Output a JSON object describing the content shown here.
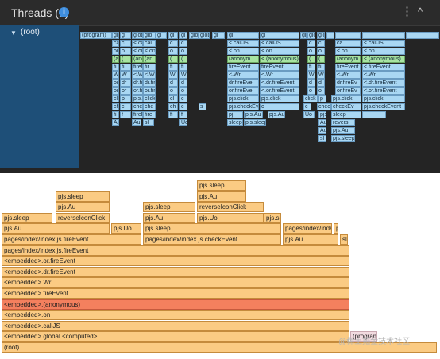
{
  "header": {
    "title": "Threads (1)",
    "info_icon": "info-icon",
    "more_icon": "more-vertical-icon",
    "collapse_icon": "chevron-up-icon"
  },
  "tree": {
    "root_label": "(root)"
  },
  "minimap": {
    "rows": [
      [
        "(program)",
        "gl",
        "gl",
        "global.<c",
        "glo",
        "gl",
        "gl",
        "gl",
        "global.<c",
        "global.<comp",
        "gl",
        "gl",
        "gl",
        "gl",
        "global.<comp",
        "global.<comp"
      ],
      [
        "ca",
        "c",
        "<.callJS",
        "cal",
        "c",
        "c",
        "<.callJS",
        "<.callJS",
        "c",
        "c",
        "ca",
        "<.callJS"
      ],
      [
        "on",
        "o",
        "<.on",
        "<.on",
        "o",
        "o",
        "<.on",
        "<.on",
        "o",
        "o",
        "<.on",
        "<.on"
      ],
      [
        "(a",
        "(",
        "(anonymous",
        "(an",
        "(",
        "(",
        "(anonym",
        "<.(anonymous)",
        "(",
        "(",
        "(anonym",
        "<.(anonymous)"
      ],
      [
        "fi",
        "fi",
        "fireEvent",
        "fir",
        "fi",
        "fi",
        "fireEvent",
        "fireEvent",
        "fi",
        "fi",
        "fireEvent",
        "<.fireEvent"
      ],
      [
        "Wr",
        "W",
        "<.Wr",
        "<.Wr",
        "W",
        "W",
        "<.Wr",
        "<.Wr",
        "W",
        "W",
        "<.Wr",
        "<.Wr"
      ],
      [
        "or",
        "dr",
        "dr.fireEv",
        "dr.fire",
        "d",
        "d",
        "dr.fireEve",
        "<.dr.fireEvent",
        "d",
        "d",
        "dr.fireEv",
        "<.dr.fireEvent"
      ],
      [
        "or",
        "or",
        "or.fireEv",
        "or.fire",
        "o",
        "o",
        "or.fireEve",
        "<.or.fireEvent",
        "o",
        "o",
        "or.fireEv",
        "<.or.fireEvent"
      ],
      [
        "cli",
        "p",
        "pjs.click",
        "click",
        "cl",
        "c",
        "pjs.click",
        "pjs.click",
        "click",
        "p",
        "pjs.click",
        "pjs.click"
      ],
      [
        "ch",
        "c",
        "checkEve",
        "che",
        "ch",
        "c",
        "s",
        "pjs.checkEv",
        "c",
        "c",
        "checkEv",
        "checkEv",
        "pjs.checkEvent"
      ],
      [
        "fi",
        "f",
        "fireEvent",
        "fire",
        "fi",
        "f",
        "pj",
        "pjs.Au",
        "pjs.Au",
        "Uo",
        "pjs.Uo",
        "sleep"
      ],
      [
        "Au",
        "Au",
        "sl",
        "Uo",
        "sleep",
        "pjs.sleep",
        "Au",
        "revers"
      ],
      [
        "Au",
        "pjs.Au"
      ],
      [
        "sl",
        "pjs.sleep"
      ]
    ]
  },
  "flame": {
    "rows": [
      [
        "pjs.sleep"
      ],
      [
        "pjs.sleep",
        "pjs.Au"
      ],
      [
        "pjs.Au",
        "pjs.sleep",
        "reverseIconClick"
      ],
      [
        "pjs.sleep",
        "reverseIconClick",
        "pjs.Au",
        "pjs.Uo",
        "pjs.sleep"
      ],
      [
        "pjs.Au",
        "pjs.Uo",
        "pjs.sleep",
        "pages/index/index.js.fireEvent",
        "pjs.sleep"
      ],
      [
        "pages/index/index.js.fireEvent",
        "pages/index/index.js.checkEvent",
        "pjs.Au",
        "sl"
      ],
      [
        "pages/index/index.js.fireEvent"
      ],
      [
        "<embedded>.or.fireEvent"
      ],
      [
        "<embedded>.dr.fireEvent"
      ],
      [
        "<embedded>.Wr"
      ],
      [
        "<embedded>.fireEvent"
      ],
      [
        "<embedded>.(anonymous)"
      ],
      [
        "<embedded>.on"
      ],
      [
        "<embedded>.callJS"
      ],
      [
        "<embedded>.global.<computed>",
        "(program)"
      ],
      [
        "(root)"
      ]
    ]
  },
  "watermark": "@稀土掘金技术社区"
}
